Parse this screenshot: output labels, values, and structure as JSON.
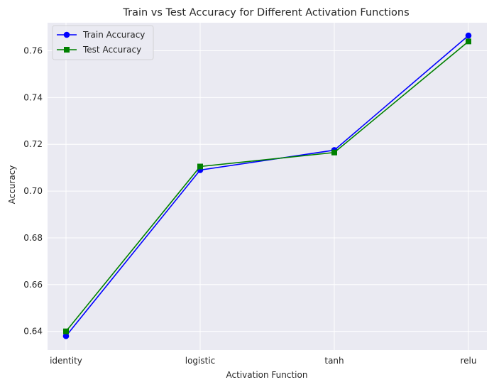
{
  "chart_data": {
    "type": "line",
    "title": "Train vs Test Accuracy for Different Activation Functions",
    "xlabel": "Activation Function",
    "ylabel": "Accuracy",
    "categories": [
      "identity",
      "logistic",
      "tanh",
      "relu"
    ],
    "ylim": [
      0.632,
      0.772
    ],
    "yticks": [
      0.64,
      0.66,
      0.68,
      0.7,
      0.72,
      0.74,
      0.76
    ],
    "ytick_labels": [
      "0.64",
      "0.66",
      "0.68",
      "0.70",
      "0.72",
      "0.74",
      "0.76"
    ],
    "grid": true,
    "legend_position": "upper left",
    "series": [
      {
        "name": "Train Accuracy",
        "color": "#0000ff",
        "marker": "circle",
        "values": [
          0.638,
          0.709,
          0.7175,
          0.7665
        ]
      },
      {
        "name": "Test Accuracy",
        "color": "#008000",
        "marker": "square",
        "values": [
          0.64,
          0.7105,
          0.7165,
          0.764
        ]
      }
    ]
  },
  "colors": {
    "plot_background": "#eaeaf2",
    "grid": "#ffffff",
    "text": "#262626"
  }
}
